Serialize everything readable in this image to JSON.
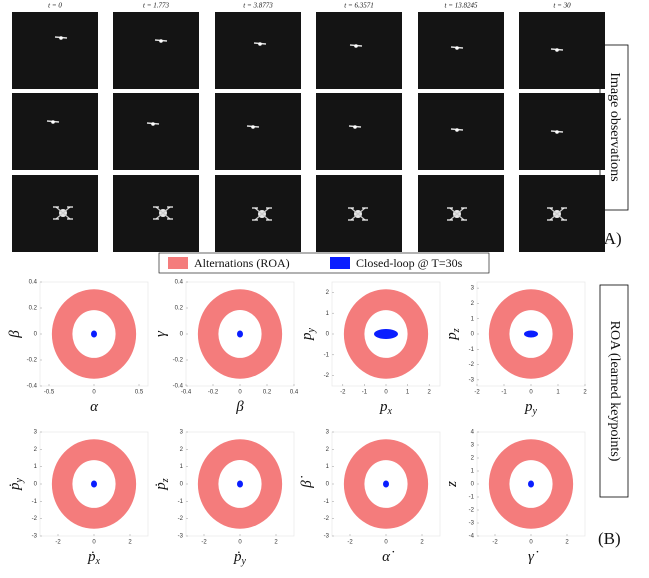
{
  "figure": {
    "time_labels": [
      "t = 0",
      "t = 1.773",
      "t = 3.8773",
      "t = 6.3571",
      "t = 13.8245",
      "t = 30"
    ],
    "panel_a": {
      "side_label": "Image observations",
      "tag": "(A)"
    },
    "legend": [
      {
        "name": "Alternations (ROA)",
        "color": "#f47c7c"
      },
      {
        "name": "Closed-loop @ T=30s",
        "color": "#0a1eff"
      }
    ],
    "plots": [
      {
        "xlabel": {
          "text": "α"
        },
        "ylabel": {
          "text": "β"
        },
        "xlim": [
          -0.6,
          0.6
        ],
        "ylim": [
          -0.4,
          0.4
        ],
        "xticks": [
          -0.5,
          0,
          0.5
        ],
        "yticks": [
          -0.4,
          -0.2,
          0,
          0.2,
          0.4
        ]
      },
      {
        "xlabel": {
          "text": "β"
        },
        "ylabel": {
          "text": "γ"
        },
        "xlim": [
          -0.4,
          0.4
        ],
        "ylim": [
          -0.4,
          0.4
        ],
        "xticks": [
          -0.4,
          -0.2,
          0,
          0.2,
          0.4
        ],
        "yticks": [
          -0.4,
          -0.2,
          0,
          0.2,
          0.4
        ]
      },
      {
        "xlabel": {
          "text": "p",
          "sub": "x"
        },
        "ylabel": {
          "text": "p",
          "sub": "y"
        },
        "xlim": [
          -2.5,
          2.5
        ],
        "ylim": [
          -2.5,
          2.5
        ],
        "xticks": [
          -2,
          -1,
          0,
          1,
          2
        ],
        "yticks": [
          -2,
          -1,
          0,
          1,
          2
        ]
      },
      {
        "xlabel": {
          "text": "p",
          "sub": "y"
        },
        "ylabel": {
          "text": "p",
          "sub": "z"
        },
        "xlim": [
          -2,
          2
        ],
        "ylim": [
          -3.4,
          3.4
        ],
        "xticks": [
          -2,
          -1,
          0,
          1,
          2
        ],
        "yticks": [
          -3,
          -2,
          -1,
          0,
          1,
          2,
          3
        ]
      },
      {
        "xlabel": {
          "text": "ṗ",
          "sub": "x"
        },
        "ylabel": {
          "text": "ṗ",
          "sub": "y"
        },
        "xlim": [
          -3,
          3
        ],
        "ylim": [
          -3,
          3
        ],
        "xticks": [
          -2,
          0,
          2
        ],
        "yticks": [
          -3,
          -2,
          -1,
          0,
          1,
          2,
          3
        ]
      },
      {
        "xlabel": {
          "text": "ṗ",
          "sub": "y"
        },
        "ylabel": {
          "text": "ṗ",
          "sub": "z"
        },
        "xlim": [
          -3,
          3
        ],
        "ylim": [
          -3,
          3
        ],
        "xticks": [
          -2,
          0,
          2
        ],
        "yticks": [
          -3,
          -2,
          -1,
          0,
          1,
          2,
          3
        ]
      },
      {
        "xlabel": {
          "text": "α̇"
        },
        "ylabel": {
          "text": "β̇"
        },
        "xlim": [
          -3,
          3
        ],
        "ylim": [
          -3,
          3
        ],
        "xticks": [
          -2,
          0,
          2
        ],
        "yticks": [
          -3,
          -2,
          -1,
          0,
          1,
          2,
          3
        ]
      },
      {
        "xlabel": {
          "text": "γ̇"
        },
        "ylabel": {
          "text": "z"
        },
        "xlim": [
          -3,
          3
        ],
        "ylim": [
          -4,
          4
        ],
        "xticks": [
          -2,
          0,
          2
        ],
        "yticks": [
          -4,
          -3,
          -2,
          -1,
          0,
          1,
          2,
          3,
          4
        ]
      }
    ],
    "panel_b": {
      "side_label": "ROA (learned keypoints)",
      "tag": "(B)"
    }
  }
}
